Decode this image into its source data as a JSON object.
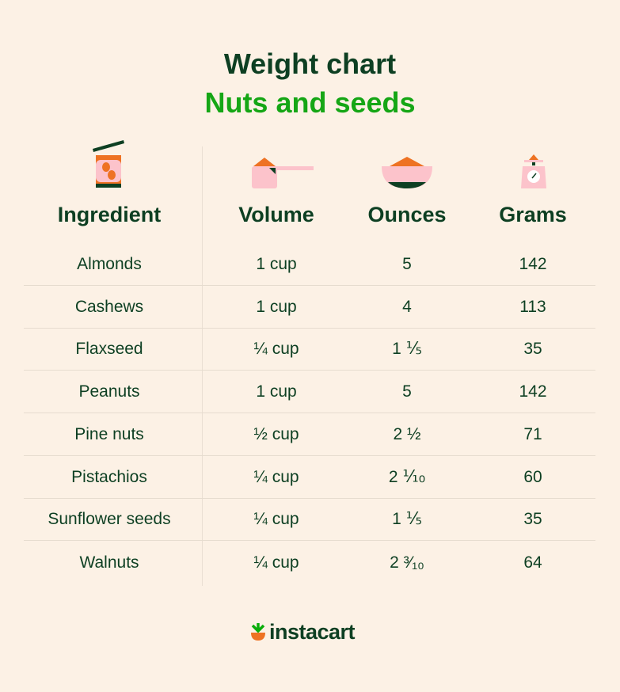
{
  "title": "Weight chart",
  "subtitle": "Nuts and seeds",
  "colors": {
    "background": "#fcf1e5",
    "text": "#0d3f22",
    "accent": "#15a615",
    "orange": "#ee7223",
    "pink": "#fcc3cb"
  },
  "columns": [
    {
      "label": "Ingredient",
      "icon": "peanut-can-icon"
    },
    {
      "label": "Volume",
      "icon": "measuring-cup-icon"
    },
    {
      "label": "Ounces",
      "icon": "bowl-icon"
    },
    {
      "label": "Grams",
      "icon": "kitchen-scale-icon"
    }
  ],
  "rows": [
    [
      "Almonds",
      "1 cup",
      "5",
      "142"
    ],
    [
      "Cashews",
      "1 cup",
      "4",
      "113"
    ],
    [
      "Flaxseed",
      "¼ cup",
      "1 ⅕",
      "35"
    ],
    [
      "Peanuts",
      "1 cup",
      "5",
      "142"
    ],
    [
      "Pine nuts",
      "½ cup",
      "2 ½",
      "71"
    ],
    [
      "Pistachios",
      "¼ cup",
      "2 ⅒",
      "60"
    ],
    [
      "Sunflower seeds",
      "¼ cup",
      "1 ⅕",
      "35"
    ],
    [
      "Walnuts",
      "¼ cup",
      "2 ³⁄₁₀",
      "64"
    ]
  ],
  "brand": "instacart"
}
